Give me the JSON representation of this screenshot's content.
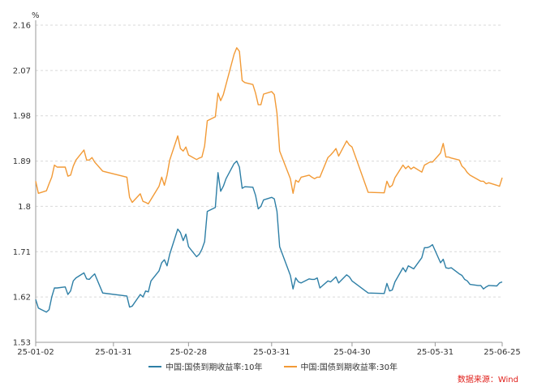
{
  "chart_data": {
    "type": "line",
    "unit": "%",
    "ylim": [
      1.53,
      2.16
    ],
    "yticks": [
      "2.16",
      "2.07",
      "1.98",
      "1.89",
      "1.8",
      "1.71",
      "1.62",
      "1.53"
    ],
    "xlim": [
      "2025-01-02",
      "2025-06-25"
    ],
    "xticks": [
      {
        "date": "2025-01-02",
        "label": "25-01-02"
      },
      {
        "date": "2025-01-31",
        "label": "25-01-31"
      },
      {
        "date": "2025-02-28",
        "label": "25-02-28"
      },
      {
        "date": "2025-03-31",
        "label": "25-03-31"
      },
      {
        "date": "2025-04-30",
        "label": "25-04-30"
      },
      {
        "date": "2025-05-31",
        "label": "25-05-31"
      },
      {
        "date": "2025-06-25",
        "label": "25-06-25"
      }
    ],
    "grid": true,
    "legend_position": "bottom",
    "series": [
      {
        "name": "中国:国债到期收益率:10年",
        "color": "#2e7fa6",
        "points": [
          [
            "2025-01-02",
            1.615
          ],
          [
            "2025-01-03",
            1.598
          ],
          [
            "2025-01-06",
            1.59
          ],
          [
            "2025-01-07",
            1.595
          ],
          [
            "2025-01-08",
            1.62
          ],
          [
            "2025-01-09",
            1.638
          ],
          [
            "2025-01-10",
            1.638
          ],
          [
            "2025-01-13",
            1.64
          ],
          [
            "2025-01-14",
            1.625
          ],
          [
            "2025-01-15",
            1.632
          ],
          [
            "2025-01-16",
            1.652
          ],
          [
            "2025-01-17",
            1.658
          ],
          [
            "2025-01-20",
            1.668
          ],
          [
            "2025-01-21",
            1.656
          ],
          [
            "2025-01-22",
            1.655
          ],
          [
            "2025-01-23",
            1.661
          ],
          [
            "2025-01-24",
            1.666
          ],
          [
            "2025-01-27",
            1.628
          ],
          [
            "2025-02-05",
            1.622
          ],
          [
            "2025-02-06",
            1.6
          ],
          [
            "2025-02-07",
            1.602
          ],
          [
            "2025-02-10",
            1.625
          ],
          [
            "2025-02-11",
            1.62
          ],
          [
            "2025-02-12",
            1.632
          ],
          [
            "2025-02-13",
            1.63
          ],
          [
            "2025-02-14",
            1.652
          ],
          [
            "2025-02-17",
            1.672
          ],
          [
            "2025-02-18",
            1.688
          ],
          [
            "2025-02-19",
            1.694
          ],
          [
            "2025-02-20",
            1.682
          ],
          [
            "2025-02-21",
            1.705
          ],
          [
            "2025-02-24",
            1.755
          ],
          [
            "2025-02-25",
            1.748
          ],
          [
            "2025-02-26",
            1.732
          ],
          [
            "2025-02-27",
            1.745
          ],
          [
            "2025-02-28",
            1.72
          ],
          [
            "2025-03-03",
            1.7
          ],
          [
            "2025-03-04",
            1.705
          ],
          [
            "2025-03-05",
            1.715
          ],
          [
            "2025-03-06",
            1.73
          ],
          [
            "2025-03-07",
            1.79
          ],
          [
            "2025-03-10",
            1.798
          ],
          [
            "2025-03-11",
            1.867
          ],
          [
            "2025-03-12",
            1.83
          ],
          [
            "2025-03-13",
            1.84
          ],
          [
            "2025-03-14",
            1.855
          ],
          [
            "2025-03-17",
            1.885
          ],
          [
            "2025-03-18",
            1.89
          ],
          [
            "2025-03-19",
            1.878
          ],
          [
            "2025-03-20",
            1.836
          ],
          [
            "2025-03-21",
            1.839
          ],
          [
            "2025-03-24",
            1.838
          ],
          [
            "2025-03-25",
            1.822
          ],
          [
            "2025-03-26",
            1.795
          ],
          [
            "2025-03-27",
            1.8
          ],
          [
            "2025-03-28",
            1.813
          ],
          [
            "2025-03-31",
            1.818
          ],
          [
            "2025-04-01",
            1.815
          ],
          [
            "2025-04-02",
            1.79
          ],
          [
            "2025-04-03",
            1.72
          ],
          [
            "2025-04-07",
            1.663
          ],
          [
            "2025-04-08",
            1.636
          ],
          [
            "2025-04-09",
            1.658
          ],
          [
            "2025-04-10",
            1.65
          ],
          [
            "2025-04-11",
            1.648
          ],
          [
            "2025-04-14",
            1.656
          ],
          [
            "2025-04-15",
            1.655
          ],
          [
            "2025-04-16",
            1.655
          ],
          [
            "2025-04-17",
            1.658
          ],
          [
            "2025-04-18",
            1.638
          ],
          [
            "2025-04-21",
            1.652
          ],
          [
            "2025-04-22",
            1.65
          ],
          [
            "2025-04-23",
            1.655
          ],
          [
            "2025-04-24",
            1.66
          ],
          [
            "2025-04-25",
            1.648
          ],
          [
            "2025-04-28",
            1.664
          ],
          [
            "2025-04-29",
            1.66
          ],
          [
            "2025-04-30",
            1.652
          ],
          [
            "2025-05-06",
            1.628
          ],
          [
            "2025-05-12",
            1.627
          ],
          [
            "2025-05-13",
            1.647
          ],
          [
            "2025-05-14",
            1.632
          ],
          [
            "2025-05-15",
            1.634
          ],
          [
            "2025-05-16",
            1.65
          ],
          [
            "2025-05-19",
            1.678
          ],
          [
            "2025-05-20",
            1.67
          ],
          [
            "2025-05-21",
            1.682
          ],
          [
            "2025-05-22",
            1.679
          ],
          [
            "2025-05-23",
            1.676
          ],
          [
            "2025-05-26",
            1.698
          ],
          [
            "2025-05-27",
            1.718
          ],
          [
            "2025-05-28",
            1.718
          ],
          [
            "2025-05-29",
            1.72
          ],
          [
            "2025-05-30",
            1.724
          ],
          [
            "2025-06-02",
            1.688
          ],
          [
            "2025-06-03",
            1.695
          ],
          [
            "2025-06-04",
            1.678
          ],
          [
            "2025-06-05",
            1.677
          ],
          [
            "2025-06-06",
            1.678
          ],
          [
            "2025-06-09",
            1.666
          ],
          [
            "2025-06-10",
            1.663
          ],
          [
            "2025-06-11",
            1.655
          ],
          [
            "2025-06-12",
            1.652
          ],
          [
            "2025-06-13",
            1.645
          ],
          [
            "2025-06-16",
            1.643
          ],
          [
            "2025-06-17",
            1.643
          ],
          [
            "2025-06-18",
            1.636
          ],
          [
            "2025-06-19",
            1.64
          ],
          [
            "2025-06-20",
            1.643
          ],
          [
            "2025-06-23",
            1.642
          ],
          [
            "2025-06-24",
            1.648
          ],
          [
            "2025-06-25",
            1.65
          ]
        ]
      },
      {
        "name": "中国:国债到期收益率:30年",
        "color": "#f29a36",
        "points": [
          [
            "2025-01-02",
            1.85
          ],
          [
            "2025-01-03",
            1.826
          ],
          [
            "2025-01-06",
            1.831
          ],
          [
            "2025-01-07",
            1.845
          ],
          [
            "2025-01-08",
            1.858
          ],
          [
            "2025-01-09",
            1.882
          ],
          [
            "2025-01-10",
            1.878
          ],
          [
            "2025-01-13",
            1.878
          ],
          [
            "2025-01-14",
            1.86
          ],
          [
            "2025-01-15",
            1.862
          ],
          [
            "2025-01-16",
            1.88
          ],
          [
            "2025-01-17",
            1.892
          ],
          [
            "2025-01-20",
            1.912
          ],
          [
            "2025-01-21",
            1.892
          ],
          [
            "2025-01-22",
            1.892
          ],
          [
            "2025-01-23",
            1.897
          ],
          [
            "2025-01-24",
            1.888
          ],
          [
            "2025-01-27",
            1.87
          ],
          [
            "2025-02-05",
            1.858
          ],
          [
            "2025-02-06",
            1.818
          ],
          [
            "2025-02-07",
            1.808
          ],
          [
            "2025-02-10",
            1.825
          ],
          [
            "2025-02-11",
            1.81
          ],
          [
            "2025-02-12",
            1.808
          ],
          [
            "2025-02-13",
            1.805
          ],
          [
            "2025-02-17",
            1.84
          ],
          [
            "2025-02-18",
            1.858
          ],
          [
            "2025-02-19",
            1.842
          ],
          [
            "2025-02-20",
            1.862
          ],
          [
            "2025-02-21",
            1.892
          ],
          [
            "2025-02-24",
            1.94
          ],
          [
            "2025-02-25",
            1.915
          ],
          [
            "2025-02-26",
            1.91
          ],
          [
            "2025-02-27",
            1.918
          ],
          [
            "2025-02-28",
            1.902
          ],
          [
            "2025-03-03",
            1.893
          ],
          [
            "2025-03-04",
            1.896
          ],
          [
            "2025-03-05",
            1.898
          ],
          [
            "2025-03-06",
            1.92
          ],
          [
            "2025-03-07",
            1.97
          ],
          [
            "2025-03-10",
            1.978
          ],
          [
            "2025-03-11",
            2.025
          ],
          [
            "2025-03-12",
            2.01
          ],
          [
            "2025-03-13",
            2.022
          ],
          [
            "2025-03-14",
            2.042
          ],
          [
            "2025-03-17",
            2.102
          ],
          [
            "2025-03-18",
            2.115
          ],
          [
            "2025-03-19",
            2.108
          ],
          [
            "2025-03-20",
            2.05
          ],
          [
            "2025-03-21",
            2.046
          ],
          [
            "2025-03-24",
            2.042
          ],
          [
            "2025-03-25",
            2.025
          ],
          [
            "2025-03-26",
            2.002
          ],
          [
            "2025-03-27",
            2.002
          ],
          [
            "2025-03-28",
            2.023
          ],
          [
            "2025-03-31",
            2.028
          ],
          [
            "2025-04-01",
            2.022
          ],
          [
            "2025-04-02",
            1.985
          ],
          [
            "2025-04-03",
            1.91
          ],
          [
            "2025-04-07",
            1.855
          ],
          [
            "2025-04-08",
            1.826
          ],
          [
            "2025-04-09",
            1.852
          ],
          [
            "2025-04-10",
            1.848
          ],
          [
            "2025-04-11",
            1.858
          ],
          [
            "2025-04-14",
            1.862
          ],
          [
            "2025-04-15",
            1.858
          ],
          [
            "2025-04-16",
            1.855
          ],
          [
            "2025-04-17",
            1.858
          ],
          [
            "2025-04-18",
            1.858
          ],
          [
            "2025-04-21",
            1.897
          ],
          [
            "2025-04-22",
            1.902
          ],
          [
            "2025-04-23",
            1.908
          ],
          [
            "2025-04-24",
            1.915
          ],
          [
            "2025-04-25",
            1.9
          ],
          [
            "2025-04-28",
            1.93
          ],
          [
            "2025-04-29",
            1.922
          ],
          [
            "2025-04-30",
            1.918
          ],
          [
            "2025-05-06",
            1.828
          ],
          [
            "2025-05-12",
            1.827
          ],
          [
            "2025-05-13",
            1.85
          ],
          [
            "2025-05-14",
            1.838
          ],
          [
            "2025-05-15",
            1.842
          ],
          [
            "2025-05-16",
            1.857
          ],
          [
            "2025-05-19",
            1.882
          ],
          [
            "2025-05-20",
            1.875
          ],
          [
            "2025-05-21",
            1.88
          ],
          [
            "2025-05-22",
            1.874
          ],
          [
            "2025-05-23",
            1.878
          ],
          [
            "2025-05-26",
            1.868
          ],
          [
            "2025-05-27",
            1.882
          ],
          [
            "2025-05-28",
            1.885
          ],
          [
            "2025-05-29",
            1.888
          ],
          [
            "2025-05-30",
            1.888
          ],
          [
            "2025-06-02",
            1.906
          ],
          [
            "2025-06-03",
            1.925
          ],
          [
            "2025-06-04",
            1.898
          ],
          [
            "2025-06-05",
            1.898
          ],
          [
            "2025-06-06",
            1.896
          ],
          [
            "2025-06-09",
            1.892
          ],
          [
            "2025-06-10",
            1.88
          ],
          [
            "2025-06-11",
            1.875
          ],
          [
            "2025-06-12",
            1.867
          ],
          [
            "2025-06-13",
            1.862
          ],
          [
            "2025-06-16",
            1.853
          ],
          [
            "2025-06-17",
            1.85
          ],
          [
            "2025-06-18",
            1.85
          ],
          [
            "2025-06-19",
            1.845
          ],
          [
            "2025-06-20",
            1.847
          ],
          [
            "2025-06-23",
            1.842
          ],
          [
            "2025-06-24",
            1.84
          ],
          [
            "2025-06-25",
            1.857
          ]
        ]
      }
    ]
  },
  "source_label": "数据来源：Wind"
}
